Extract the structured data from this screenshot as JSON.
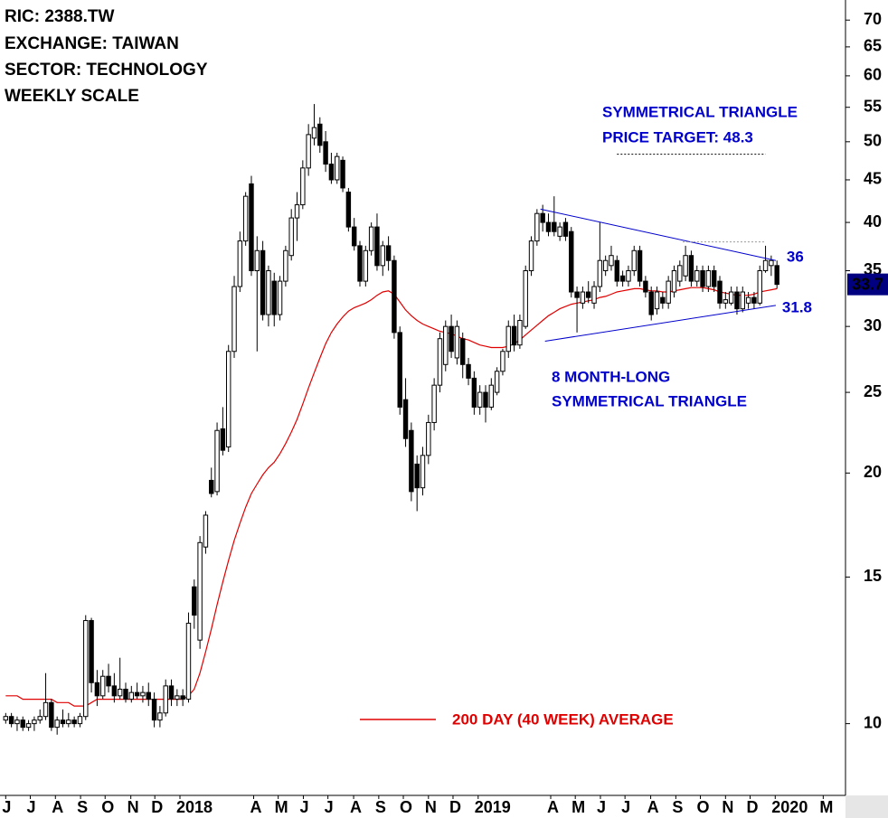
{
  "chart_data": {
    "type": "candlestick",
    "info_lines": [
      "RIC: 2388.TW",
      "EXCHANGE: TAIWAN",
      "SECTOR: TECHNOLOGY",
      "WEEKLY SCALE"
    ],
    "x": [
      0,
      1,
      2,
      3,
      4,
      5,
      6,
      7,
      8,
      9,
      10,
      11,
      12,
      13,
      14,
      15,
      16,
      17,
      18,
      19,
      20,
      21,
      22,
      23,
      24,
      25,
      26,
      27,
      28,
      29,
      30,
      31,
      32,
      33,
      34,
      35,
      36,
      37,
      38,
      39,
      40,
      41,
      42,
      43,
      44,
      45,
      46,
      47,
      48,
      49,
      50,
      51,
      52,
      53,
      54,
      55,
      56,
      57,
      58,
      59,
      60,
      61,
      62,
      63,
      64,
      65,
      66,
      67,
      68,
      69,
      70,
      71,
      72,
      73,
      74,
      75,
      76,
      77,
      78,
      79,
      80,
      81,
      82,
      83,
      84,
      85,
      86,
      87,
      88,
      89,
      90,
      91,
      92,
      93,
      94,
      95,
      96,
      97,
      98,
      99,
      100,
      101,
      102,
      103,
      104,
      105,
      106,
      107,
      108,
      109,
      110,
      111,
      112,
      113,
      114,
      115,
      116,
      117,
      118,
      119,
      120,
      121,
      122,
      123,
      124,
      125,
      126,
      127,
      128,
      129,
      130,
      131,
      132,
      133,
      134,
      135
    ],
    "open": [
      10.1,
      10.2,
      10.0,
      10.1,
      9.9,
      10.0,
      10.1,
      10.2,
      10.6,
      9.9,
      10.1,
      10.0,
      10.1,
      10.0,
      10.2,
      13.3,
      11.2,
      10.8,
      11.4,
      11.1,
      10.8,
      11.0,
      10.7,
      10.9,
      10.8,
      10.9,
      10.7,
      10.1,
      10.3,
      11.1,
      10.7,
      10.8,
      10.7,
      14.6,
      12.6,
      16.3,
      19.6,
      19.0,
      22.6,
      21.5,
      28.0,
      33.5,
      38.0,
      44.5,
      35.0,
      37.0,
      31.0,
      34.0,
      31.0,
      34.0,
      36.5,
      40.5,
      42.0,
      46.5,
      50.5,
      52.5,
      50.0,
      47.0,
      45.0,
      47.5,
      43.5,
      39.5,
      37.5,
      34.0,
      37.0,
      39.5,
      35.5,
      37.5,
      36.0,
      29.5,
      24.5,
      22.5,
      20.5,
      19.2,
      21.0,
      23.0,
      25.5,
      27.0,
      30.0,
      27.5,
      29.0,
      27.0,
      26.0,
      24.0,
      25.0,
      24.0,
      25.0,
      26.5,
      28.0,
      30.0,
      28.5,
      30.0,
      35.0,
      38.0,
      41.0,
      40.0,
      40.0,
      38.5,
      40.0,
      39.0,
      33.0,
      32.0,
      33.0,
      32.0,
      33.5,
      35.0,
      35.5,
      36.0,
      34.5,
      34.0,
      35.0,
      37.0,
      34.0,
      33.0,
      31.5,
      32.5,
      32.0,
      33.0,
      34.0,
      34.5,
      36.5,
      34.0,
      35.0,
      33.5,
      35.0,
      34.0,
      32.0,
      32.0,
      33.0,
      31.5,
      32.0,
      32.5,
      32.0,
      35.0,
      35.5,
      35.5
    ],
    "high": [
      10.3,
      10.3,
      10.2,
      10.2,
      10.1,
      10.2,
      10.4,
      11.5,
      10.7,
      10.2,
      10.4,
      10.3,
      10.2,
      10.3,
      13.5,
      13.4,
      11.6,
      11.6,
      11.8,
      11.5,
      12.0,
      11.2,
      11.1,
      11.2,
      11.1,
      11.2,
      10.9,
      10.5,
      11.3,
      11.3,
      11.0,
      11.0,
      13.6,
      14.9,
      16.8,
      18.0,
      20.3,
      23.0,
      24.0,
      28.5,
      34.5,
      39.0,
      43.5,
      45.5,
      38.5,
      38.0,
      35.5,
      34.8,
      34.5,
      37.5,
      41.5,
      43.5,
      47.5,
      52.5,
      55.5,
      53.5,
      51.5,
      48.5,
      48.5,
      48.0,
      44.0,
      40.5,
      38.0,
      37.5,
      40.0,
      41.0,
      38.0,
      38.5,
      36.5,
      30.0,
      26.0,
      23.0,
      21.0,
      21.5,
      23.5,
      26.0,
      29.5,
      30.5,
      31.0,
      30.5,
      29.5,
      27.5,
      26.5,
      25.5,
      25.5,
      26.0,
      26.8,
      28.2,
      30.5,
      31.0,
      31.0,
      35.5,
      38.5,
      41.5,
      42.0,
      41.0,
      43.0,
      40.0,
      40.5,
      39.5,
      33.5,
      33.5,
      34.0,
      34.0,
      40.0,
      36.5,
      37.5,
      36.5,
      35.0,
      35.5,
      37.5,
      37.5,
      34.5,
      33.5,
      33.5,
      33.0,
      34.5,
      35.5,
      36.0,
      37.5,
      37.0,
      35.5,
      35.5,
      35.5,
      35.5,
      34.5,
      33.0,
      33.5,
      33.5,
      33.5,
      33.0,
      33.0,
      35.5,
      37.5,
      36.5,
      36.0
    ],
    "low": [
      10.0,
      9.9,
      9.8,
      9.8,
      9.8,
      9.8,
      10.0,
      10.1,
      9.8,
      9.7,
      9.9,
      9.9,
      9.9,
      9.9,
      10.1,
      10.9,
      10.5,
      10.7,
      10.9,
      10.6,
      10.7,
      10.6,
      10.6,
      10.7,
      10.6,
      10.5,
      9.9,
      9.9,
      10.2,
      10.5,
      10.5,
      10.5,
      10.6,
      13.0,
      12.3,
      16.0,
      18.7,
      18.8,
      21.0,
      21.2,
      27.5,
      33.0,
      37.5,
      34.5,
      28.0,
      30.5,
      30.0,
      30.0,
      30.5,
      33.5,
      36.0,
      38.0,
      41.5,
      45.5,
      49.5,
      48.5,
      46.0,
      44.5,
      44.5,
      43.5,
      39.0,
      37.0,
      33.5,
      33.5,
      36.5,
      35.0,
      34.5,
      35.0,
      29.0,
      23.5,
      21.5,
      18.5,
      18.0,
      18.8,
      20.5,
      22.5,
      25.0,
      26.5,
      27.5,
      27.0,
      26.0,
      25.5,
      23.5,
      23.5,
      23.0,
      23.8,
      24.8,
      26.2,
      27.5,
      28.0,
      28.2,
      29.8,
      34.5,
      37.5,
      39.0,
      38.5,
      38.5,
      38.0,
      38.0,
      32.5,
      29.5,
      31.5,
      32.0,
      31.5,
      33.0,
      34.5,
      35.0,
      33.5,
      33.5,
      33.5,
      34.5,
      33.5,
      32.5,
      30.5,
      31.0,
      31.5,
      31.5,
      32.5,
      33.5,
      34.0,
      33.5,
      33.5,
      33.0,
      33.0,
      33.0,
      31.5,
      31.5,
      31.8,
      31.0,
      31.2,
      31.5,
      31.5,
      31.8,
      34.8,
      34.5,
      33.3
    ],
    "close": [
      10.2,
      10.0,
      10.1,
      9.9,
      10.0,
      10.1,
      10.2,
      10.6,
      9.9,
      10.1,
      10.0,
      10.1,
      10.0,
      10.2,
      13.3,
      11.2,
      10.8,
      11.4,
      11.1,
      10.8,
      11.0,
      10.7,
      10.9,
      10.8,
      10.9,
      10.7,
      10.1,
      10.3,
      11.1,
      10.7,
      10.8,
      10.7,
      13.2,
      13.5,
      16.5,
      17.8,
      18.9,
      22.5,
      21.3,
      28.0,
      33.5,
      38.0,
      43.0,
      35.0,
      37.0,
      31.0,
      35.0,
      31.0,
      34.0,
      37.0,
      40.5,
      42.0,
      46.5,
      51.0,
      52.0,
      49.5,
      47.0,
      45.0,
      48.0,
      44.0,
      39.5,
      37.5,
      34.0,
      37.0,
      39.5,
      35.5,
      37.5,
      36.0,
      29.5,
      24.0,
      22.0,
      19.0,
      19.2,
      21.0,
      23.0,
      25.5,
      29.0,
      30.0,
      28.0,
      30.0,
      27.0,
      26.0,
      24.0,
      25.0,
      24.0,
      25.5,
      26.5,
      28.0,
      30.0,
      28.5,
      30.5,
      35.0,
      38.0,
      41.0,
      40.0,
      39.0,
      39.0,
      39.5,
      38.5,
      33.0,
      32.5,
      33.0,
      32.5,
      33.5,
      36.0,
      36.0,
      36.5,
      34.0,
      34.0,
      35.0,
      37.0,
      34.0,
      33.0,
      31.0,
      33.0,
      32.0,
      34.0,
      35.0,
      35.5,
      36.5,
      34.0,
      35.0,
      33.5,
      35.0,
      33.5,
      32.0,
      32.3,
      33.0,
      31.5,
      33.0,
      32.5,
      32.0,
      35.0,
      36.0,
      36.0,
      33.7
    ],
    "up_color": "#ffffff",
    "down_color": "#000000",
    "moving_average": {
      "name": "200 DAY (40 WEEK) AVERAGE",
      "color": "#e00000",
      "values": [
        10.8,
        10.8,
        10.8,
        10.7,
        10.7,
        10.7,
        10.7,
        10.7,
        10.7,
        10.6,
        10.6,
        10.6,
        10.5,
        10.5,
        10.5,
        10.6,
        10.7,
        10.7,
        10.7,
        10.7,
        10.7,
        10.7,
        10.7,
        10.7,
        10.7,
        10.7,
        10.7,
        10.7,
        10.7,
        10.7,
        10.7,
        10.7,
        10.8,
        11.0,
        11.5,
        12.2,
        13.0,
        13.9,
        14.8,
        15.7,
        16.6,
        17.4,
        18.2,
        18.9,
        19.4,
        19.9,
        20.3,
        20.6,
        21.1,
        21.7,
        22.4,
        23.2,
        24.2,
        25.3,
        26.4,
        27.5,
        28.6,
        29.5,
        30.2,
        30.8,
        31.3,
        31.6,
        31.8,
        32.0,
        32.3,
        32.7,
        33.0,
        33.1,
        32.8,
        32.1,
        31.4,
        30.9,
        30.5,
        30.2,
        30.0,
        29.8,
        29.6,
        29.5,
        29.4,
        29.2,
        29.0,
        28.9,
        28.7,
        28.5,
        28.4,
        28.3,
        28.3,
        28.3,
        28.4,
        28.6,
        28.9,
        29.3,
        29.7,
        30.1,
        30.5,
        30.9,
        31.2,
        31.5,
        31.7,
        31.9,
        32.0,
        32.1,
        32.2,
        32.3,
        32.5,
        32.6,
        32.8,
        33.0,
        33.1,
        33.2,
        33.3,
        33.3,
        33.2,
        33.1,
        33.1,
        33.0,
        33.0,
        33.1,
        33.2,
        33.3,
        33.4,
        33.4,
        33.4,
        33.3,
        33.2,
        33.0,
        32.9,
        32.8,
        32.7,
        32.7,
        32.7,
        32.8,
        33.0,
        33.1,
        33.2,
        33.3
      ]
    },
    "triangle": {
      "color": "#0000cc",
      "upper": {
        "x": [
          93.6,
          134.8
        ],
        "y": [
          41.5,
          36
        ]
      },
      "lower": {
        "x": [
          94.4,
          134.8
        ],
        "y": [
          28.8,
          31.8
        ]
      }
    },
    "target_line": {
      "value": 48.3,
      "x": [
        107,
        133
      ]
    },
    "resistance_line": {
      "value": 37.9,
      "x": [
        118.5,
        133
      ]
    },
    "target_label": [
      "SYMMETRICAL TRIANGLE",
      "PRICE TARGET: 48.3"
    ],
    "pattern_label": [
      "8 MONTH-LONG",
      "SYMMETRICAL TRIANGLE"
    ],
    "annotation_color": "#0000cc",
    "last_price": 33.7,
    "last_price_color": "#000080",
    "xlim": [
      -1,
      147
    ],
    "xticks": [
      {
        "value": 0,
        "label": "J"
      },
      {
        "value": 4.3,
        "label": "J"
      },
      {
        "value": 8.7,
        "label": "A"
      },
      {
        "value": 13.1,
        "label": "S"
      },
      {
        "value": 17.4,
        "label": "O"
      },
      {
        "value": 21.9,
        "label": "N"
      },
      {
        "value": 26.1,
        "label": "D"
      },
      {
        "value": 30.5,
        "label": "2018"
      },
      {
        "value": 43.4,
        "label": "A"
      },
      {
        "value": 47.7,
        "label": "M"
      },
      {
        "value": 52.1,
        "label": "J"
      },
      {
        "value": 56.4,
        "label": "J"
      },
      {
        "value": 60.9,
        "label": "A"
      },
      {
        "value": 65.3,
        "label": "S"
      },
      {
        "value": 69.6,
        "label": "O"
      },
      {
        "value": 74,
        "label": "N"
      },
      {
        "value": 78.3,
        "label": "D"
      },
      {
        "value": 82.7,
        "label": "2019"
      },
      {
        "value": 95.4,
        "label": "A"
      },
      {
        "value": 99.7,
        "label": "M"
      },
      {
        "value": 104.1,
        "label": "J"
      },
      {
        "value": 108.4,
        "label": "J"
      },
      {
        "value": 112.9,
        "label": "A"
      },
      {
        "value": 117.3,
        "label": "S"
      },
      {
        "value": 121.6,
        "label": "O"
      },
      {
        "value": 126,
        "label": "N"
      },
      {
        "value": 130.3,
        "label": "D"
      },
      {
        "value": 134.7,
        "label": "2020"
      },
      {
        "value": 143.1,
        "label": "M"
      }
    ],
    "ylim": [
      8.2,
      74
    ],
    "log_scale": true,
    "yticks": [
      10,
      15,
      20,
      25,
      30,
      35,
      40,
      45,
      50,
      55,
      60,
      65,
      70
    ]
  }
}
